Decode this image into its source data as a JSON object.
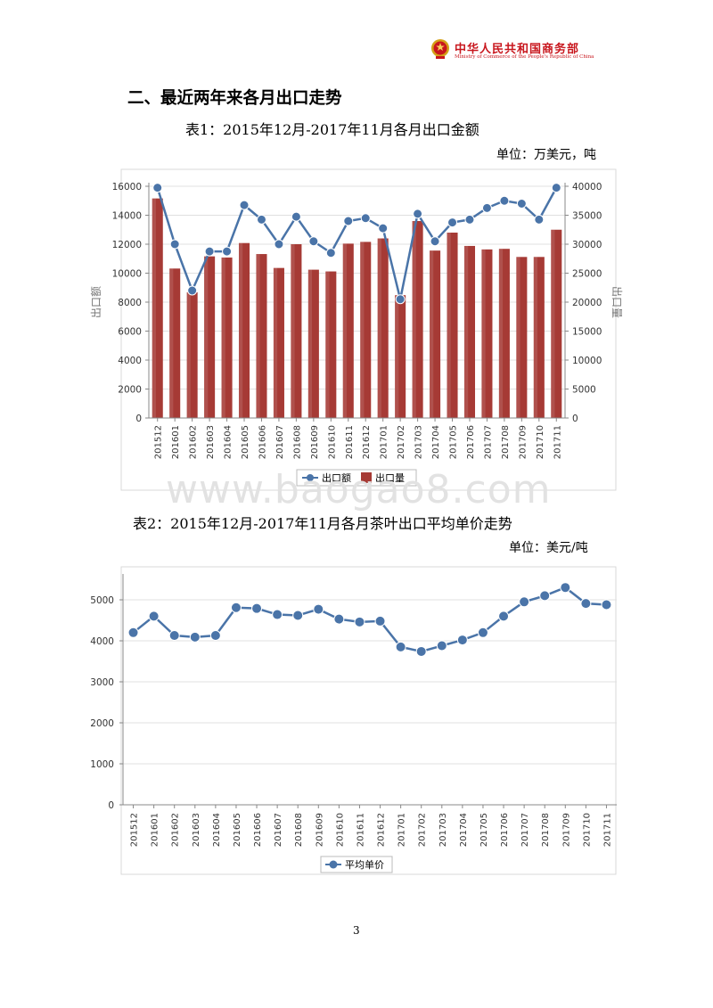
{
  "header": {
    "org_cn": "中华人民共和国商务部",
    "org_en": "Ministry of Commerce of the People's Republic of China",
    "accent_color": "#c8161d"
  },
  "section_title": "二、最近两年来各月出口走势",
  "table1": {
    "title": "表1：2015年12月-2017年11月各月出口金额",
    "unit": "单位：万美元，吨"
  },
  "table2": {
    "title": "表2：2015年12月-2017年11月各月茶叶出口平均单价走势",
    "unit": "单位：美元/吨"
  },
  "watermark": "www.baogao8.com",
  "page_number": "3",
  "chart_data": [
    {
      "type": "bar+line",
      "categories": [
        "201512",
        "201601",
        "201602",
        "201603",
        "201604",
        "201605",
        "201606",
        "201607",
        "201608",
        "201609",
        "201610",
        "201611",
        "201612",
        "201701",
        "201702",
        "201703",
        "201704",
        "201705",
        "201706",
        "201707",
        "201708",
        "201709",
        "201710",
        "201711"
      ],
      "series": [
        {
          "name": "出口额",
          "type": "line",
          "axis": "left",
          "color": "#4a74a8",
          "values": [
            15900,
            12000,
            8800,
            11500,
            11500,
            14700,
            13700,
            12000,
            13900,
            12200,
            11400,
            13600,
            13800,
            13100,
            8200,
            14100,
            12200,
            13500,
            13700,
            14500,
            15000,
            14800,
            13700,
            15900
          ]
        },
        {
          "name": "出口量",
          "type": "bar",
          "axis": "right",
          "color": "#a63a35",
          "values": [
            37900,
            25800,
            21700,
            27900,
            27700,
            30200,
            28300,
            25900,
            30000,
            25600,
            25300,
            30100,
            30400,
            31000,
            21200,
            34000,
            28900,
            32000,
            29700,
            29100,
            29200,
            27800,
            27800,
            32500
          ]
        }
      ],
      "ylabel_left": "出口额",
      "ylabel_right": "出口量",
      "ylim_left": [
        0,
        16000
      ],
      "yticks_left": [
        "0",
        "2000",
        "4000",
        "6000",
        "8000",
        "10000",
        "12000",
        "14000",
        "16000"
      ],
      "ylim_right": [
        0,
        40000
      ],
      "yticks_right": [
        "0",
        "5000",
        "10000",
        "15000",
        "20000",
        "25000",
        "30000",
        "35000",
        "40000"
      ],
      "legend": [
        "出口额",
        "出口量"
      ],
      "legend_position": "bottom",
      "grid": true
    },
    {
      "type": "line",
      "categories": [
        "201512",
        "201601",
        "201602",
        "201603",
        "201604",
        "201605",
        "201606",
        "201607",
        "201608",
        "201609",
        "201610",
        "201611",
        "201612",
        "201701",
        "201702",
        "201703",
        "201704",
        "201705",
        "201706",
        "201707",
        "201708",
        "201709",
        "201710",
        "201711"
      ],
      "series": [
        {
          "name": "平均单价",
          "color": "#4a74a8",
          "values": [
            4200,
            4600,
            4130,
            4090,
            4130,
            4810,
            4790,
            4640,
            4620,
            4770,
            4530,
            4460,
            4480,
            3850,
            3740,
            3880,
            4020,
            4200,
            4600,
            4950,
            5100,
            5300,
            4910,
            4880
          ]
        }
      ],
      "ylim": [
        0,
        5500
      ],
      "yticks": [
        "0",
        "1000",
        "2000",
        "3000",
        "4000",
        "5000"
      ],
      "legend": [
        "平均单价"
      ],
      "legend_position": "bottom",
      "grid": true
    }
  ]
}
